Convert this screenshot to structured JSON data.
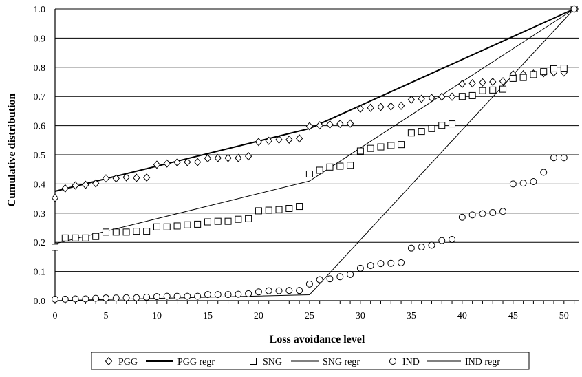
{
  "chart_data": {
    "type": "scatter",
    "title": "",
    "xlabel": "Loss avoidance level",
    "ylabel": "Cumulative distribution",
    "xlim": [
      0,
      51.5
    ],
    "ylim": [
      0,
      1.0
    ],
    "x_ticks": [
      0,
      5,
      10,
      15,
      20,
      25,
      30,
      35,
      40,
      45,
      50
    ],
    "y_ticks": [
      0.0,
      0.1,
      0.2,
      0.3,
      0.4,
      0.5,
      0.6,
      0.7,
      0.8,
      0.9,
      1.0
    ],
    "grid": "horizontal",
    "legend_position": "bottom",
    "series": [
      {
        "name": "PGG",
        "marker": "diamond",
        "x": [
          0,
          1,
          2,
          3,
          4,
          5,
          6,
          7,
          8,
          9,
          10,
          11,
          12,
          13,
          14,
          15,
          16,
          17,
          18,
          19,
          20,
          21,
          22,
          23,
          24,
          25,
          26,
          27,
          28,
          29,
          30,
          31,
          32,
          33,
          34,
          35,
          36,
          37,
          38,
          39,
          40,
          41,
          42,
          43,
          44,
          45,
          46,
          47,
          48,
          49,
          50,
          51
        ],
        "values": [
          0.352,
          0.385,
          0.395,
          0.397,
          0.402,
          0.419,
          0.419,
          0.423,
          0.421,
          0.422,
          0.466,
          0.47,
          0.474,
          0.475,
          0.475,
          0.488,
          0.489,
          0.489,
          0.489,
          0.495,
          0.544,
          0.548,
          0.552,
          0.552,
          0.556,
          0.598,
          0.601,
          0.604,
          0.606,
          0.607,
          0.658,
          0.661,
          0.664,
          0.666,
          0.668,
          0.689,
          0.692,
          0.695,
          0.699,
          0.699,
          0.743,
          0.745,
          0.748,
          0.75,
          0.752,
          0.776,
          0.776,
          0.778,
          0.78,
          0.782,
          0.782,
          1.0
        ]
      },
      {
        "name": "PGG regr",
        "marker": "line",
        "line_style": "thick",
        "x": [
          0,
          25,
          51
        ],
        "values": [
          0.375,
          0.59,
          1.0
        ]
      },
      {
        "name": "SNG",
        "marker": "square",
        "x": [
          0,
          1,
          2,
          3,
          4,
          5,
          6,
          7,
          8,
          9,
          10,
          11,
          12,
          13,
          14,
          15,
          16,
          17,
          18,
          19,
          20,
          21,
          22,
          23,
          24,
          25,
          26,
          27,
          28,
          29,
          30,
          31,
          32,
          33,
          34,
          35,
          36,
          37,
          38,
          39,
          40,
          41,
          42,
          43,
          44,
          45,
          46,
          47,
          48,
          49,
          50,
          51
        ],
        "values": [
          0.183,
          0.215,
          0.215,
          0.215,
          0.22,
          0.235,
          0.235,
          0.235,
          0.238,
          0.238,
          0.253,
          0.253,
          0.256,
          0.26,
          0.262,
          0.27,
          0.272,
          0.272,
          0.279,
          0.281,
          0.308,
          0.31,
          0.312,
          0.316,
          0.323,
          0.434,
          0.447,
          0.458,
          0.461,
          0.464,
          0.513,
          0.522,
          0.527,
          0.532,
          0.535,
          0.575,
          0.58,
          0.59,
          0.601,
          0.606,
          0.7,
          0.703,
          0.72,
          0.722,
          0.725,
          0.762,
          0.765,
          0.775,
          0.785,
          0.795,
          0.797,
          1.0
        ]
      },
      {
        "name": "SNG regr",
        "marker": "line",
        "line_style": "thin",
        "x": [
          0,
          25,
          51
        ],
        "values": [
          0.195,
          0.41,
          1.0
        ]
      },
      {
        "name": "IND",
        "marker": "circle",
        "x": [
          0,
          1,
          2,
          3,
          4,
          5,
          6,
          7,
          8,
          9,
          10,
          11,
          12,
          13,
          14,
          15,
          16,
          17,
          18,
          19,
          20,
          21,
          22,
          23,
          24,
          25,
          26,
          27,
          28,
          29,
          30,
          31,
          32,
          33,
          34,
          35,
          36,
          37,
          38,
          39,
          40,
          41,
          42,
          43,
          44,
          45,
          46,
          47,
          48,
          49,
          50,
          51
        ],
        "values": [
          0.005,
          0.005,
          0.006,
          0.006,
          0.008,
          0.009,
          0.009,
          0.01,
          0.01,
          0.012,
          0.014,
          0.015,
          0.015,
          0.015,
          0.015,
          0.021,
          0.021,
          0.021,
          0.022,
          0.024,
          0.03,
          0.034,
          0.034,
          0.035,
          0.035,
          0.057,
          0.072,
          0.075,
          0.082,
          0.09,
          0.111,
          0.12,
          0.127,
          0.128,
          0.13,
          0.18,
          0.184,
          0.19,
          0.206,
          0.21,
          0.286,
          0.294,
          0.298,
          0.302,
          0.306,
          0.4,
          0.403,
          0.408,
          0.44,
          0.49,
          0.49,
          1.0
        ]
      },
      {
        "name": "IND regr",
        "marker": "line",
        "line_style": "thin",
        "x": [
          0,
          25,
          51
        ],
        "values": [
          0.0,
          0.02,
          1.0
        ]
      }
    ]
  }
}
